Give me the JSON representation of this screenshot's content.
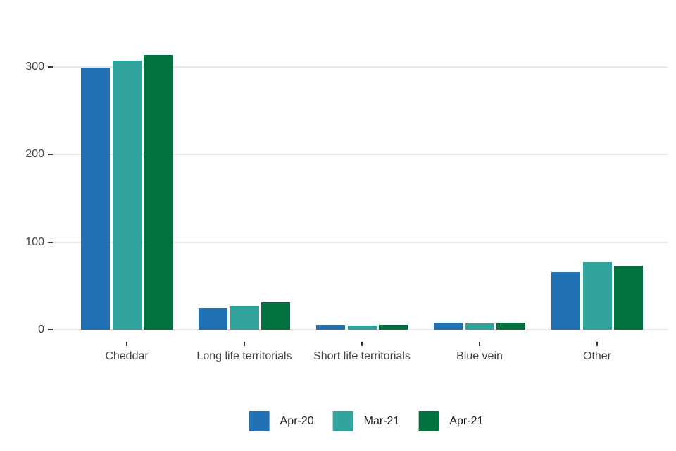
{
  "chart_data": {
    "type": "bar",
    "title": "",
    "xlabel": "",
    "ylabel": "",
    "categories": [
      "Cheddar",
      "Long life territorials",
      "Short life territorials",
      "Blue vein",
      "Other"
    ],
    "series": [
      {
        "name": "Apr-20",
        "color": "#2171B5",
        "values": [
          299,
          25,
          6,
          8,
          66
        ]
      },
      {
        "name": "Mar-21",
        "color": "#2FA39C",
        "values": [
          307,
          27,
          5,
          7,
          77
        ]
      },
      {
        "name": "Apr-21",
        "color": "#00713F",
        "values": [
          313,
          31,
          6,
          8,
          73
        ]
      }
    ],
    "yticks": [
      0,
      100,
      200,
      300
    ],
    "ylim": [
      0,
      320
    ],
    "grid": "horizontal-only",
    "gridline_color": "#E8E8E8",
    "axis_text_color": "#404040",
    "background": "#FFFFFF",
    "legend_position": "bottom"
  }
}
